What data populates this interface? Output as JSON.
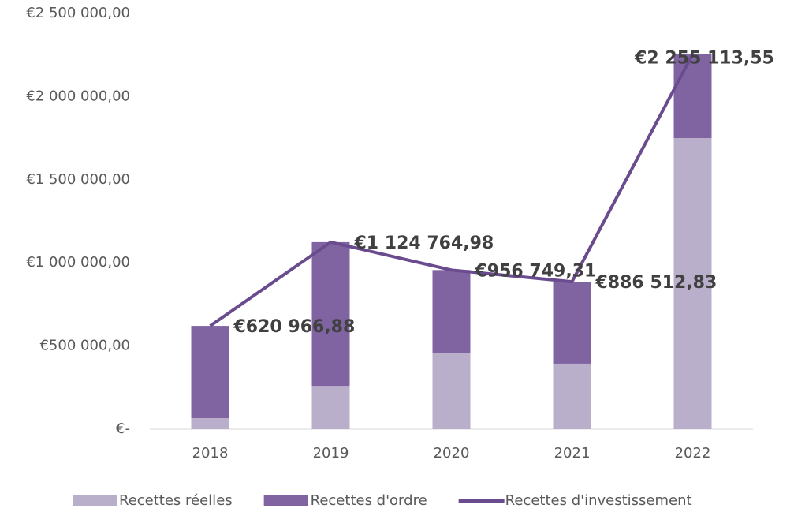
{
  "chart_data": {
    "type": "bar",
    "stacked": true,
    "categories": [
      "2018",
      "2019",
      "2020",
      "2021",
      "2022"
    ],
    "series": [
      {
        "name": "Recettes réelles",
        "type": "bar",
        "color": "#b9afca",
        "values": [
          66000,
          260000,
          460000,
          394000,
          1750000
        ]
      },
      {
        "name": "Recettes d'ordre",
        "type": "bar",
        "color": "#8064a2",
        "values": [
          554967,
          864765,
          496749,
          492513,
          505114
        ]
      },
      {
        "name": "Recettes d'investissement",
        "type": "line",
        "color": "#6a4c8e",
        "values": [
          620966.88,
          1124764.98,
          956749.31,
          886512.83,
          2255113.55
        ],
        "value_labels": [
          "€620 966,88",
          "€1 124 764,98",
          "€956 749,31",
          "€886 512,83",
          "€2 255 113,55"
        ]
      }
    ],
    "ylim": [
      0,
      2500000
    ],
    "yticks": [
      {
        "value": 0,
        "label": "€-"
      },
      {
        "value": 500000,
        "label": "€500 000,00"
      },
      {
        "value": 1000000,
        "label": "€1 000 000,00"
      },
      {
        "value": 1500000,
        "label": "€1 500 000,00"
      },
      {
        "value": 2000000,
        "label": "€2 000 000,00"
      },
      {
        "value": 2500000,
        "label": "€2 500 000,00"
      }
    ],
    "grid": false,
    "legend": "bottom"
  }
}
